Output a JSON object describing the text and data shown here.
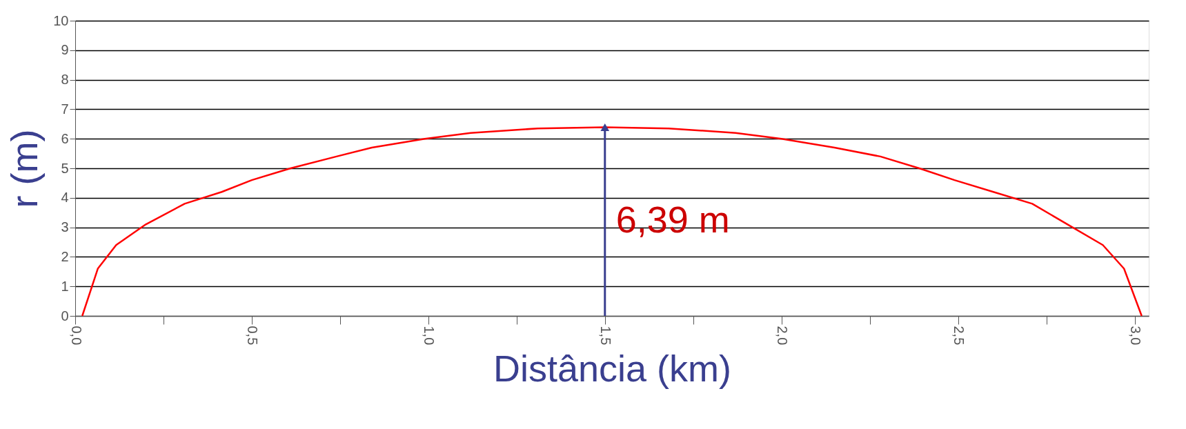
{
  "chart_data": {
    "type": "line",
    "xlabel": "Distância (km)",
    "ylabel": "r (m)",
    "x": [
      0.02,
      0.064,
      0.116,
      0.2,
      0.31,
      0.415,
      0.5,
      0.61,
      0.74,
      0.84,
      0.99,
      1.12,
      1.31,
      1.5,
      1.68,
      1.87,
      2.0,
      2.15,
      2.28,
      2.39,
      2.49,
      2.6,
      2.71,
      2.81,
      2.91,
      2.97,
      3.02
    ],
    "series": [
      {
        "color": "#ff0000",
        "values": [
          0,
          1.6,
          2.4,
          3.1,
          3.8,
          4.2,
          4.6,
          5.0,
          5.4,
          5.7,
          6.0,
          6.2,
          6.35,
          6.39,
          6.35,
          6.2,
          6.0,
          5.7,
          5.4,
          5.0,
          4.6,
          4.2,
          3.8,
          3.1,
          2.4,
          1.6,
          0
        ]
      }
    ],
    "xlim": [
      0,
      3.04
    ],
    "ylim": [
      0,
      10
    ],
    "xticks": [
      {
        "value": 0,
        "label": "0,0"
      },
      {
        "value": 0.25,
        "label": null
      },
      {
        "value": 0.5,
        "label": "0,5"
      },
      {
        "value": 0.75,
        "label": null
      },
      {
        "value": 1.0,
        "label": "1,0"
      },
      {
        "value": 1.25,
        "label": null
      },
      {
        "value": 1.5,
        "label": "1,5"
      },
      {
        "value": 1.75,
        "label": null
      },
      {
        "value": 2.0,
        "label": "2,0"
      },
      {
        "value": 2.25,
        "label": null
      },
      {
        "value": 2.5,
        "label": "2,5"
      },
      {
        "value": 2.75,
        "label": null
      },
      {
        "value": 3.0,
        "label": "3,0"
      }
    ],
    "yticks": [
      0,
      1,
      2,
      3,
      4,
      5,
      6,
      7,
      8,
      9,
      10
    ],
    "grid": "y",
    "marker": "none",
    "line_style": "solid",
    "annotations": [
      {
        "text": "6,39 m",
        "x": 1.5,
        "y": 6.39
      }
    ]
  }
}
